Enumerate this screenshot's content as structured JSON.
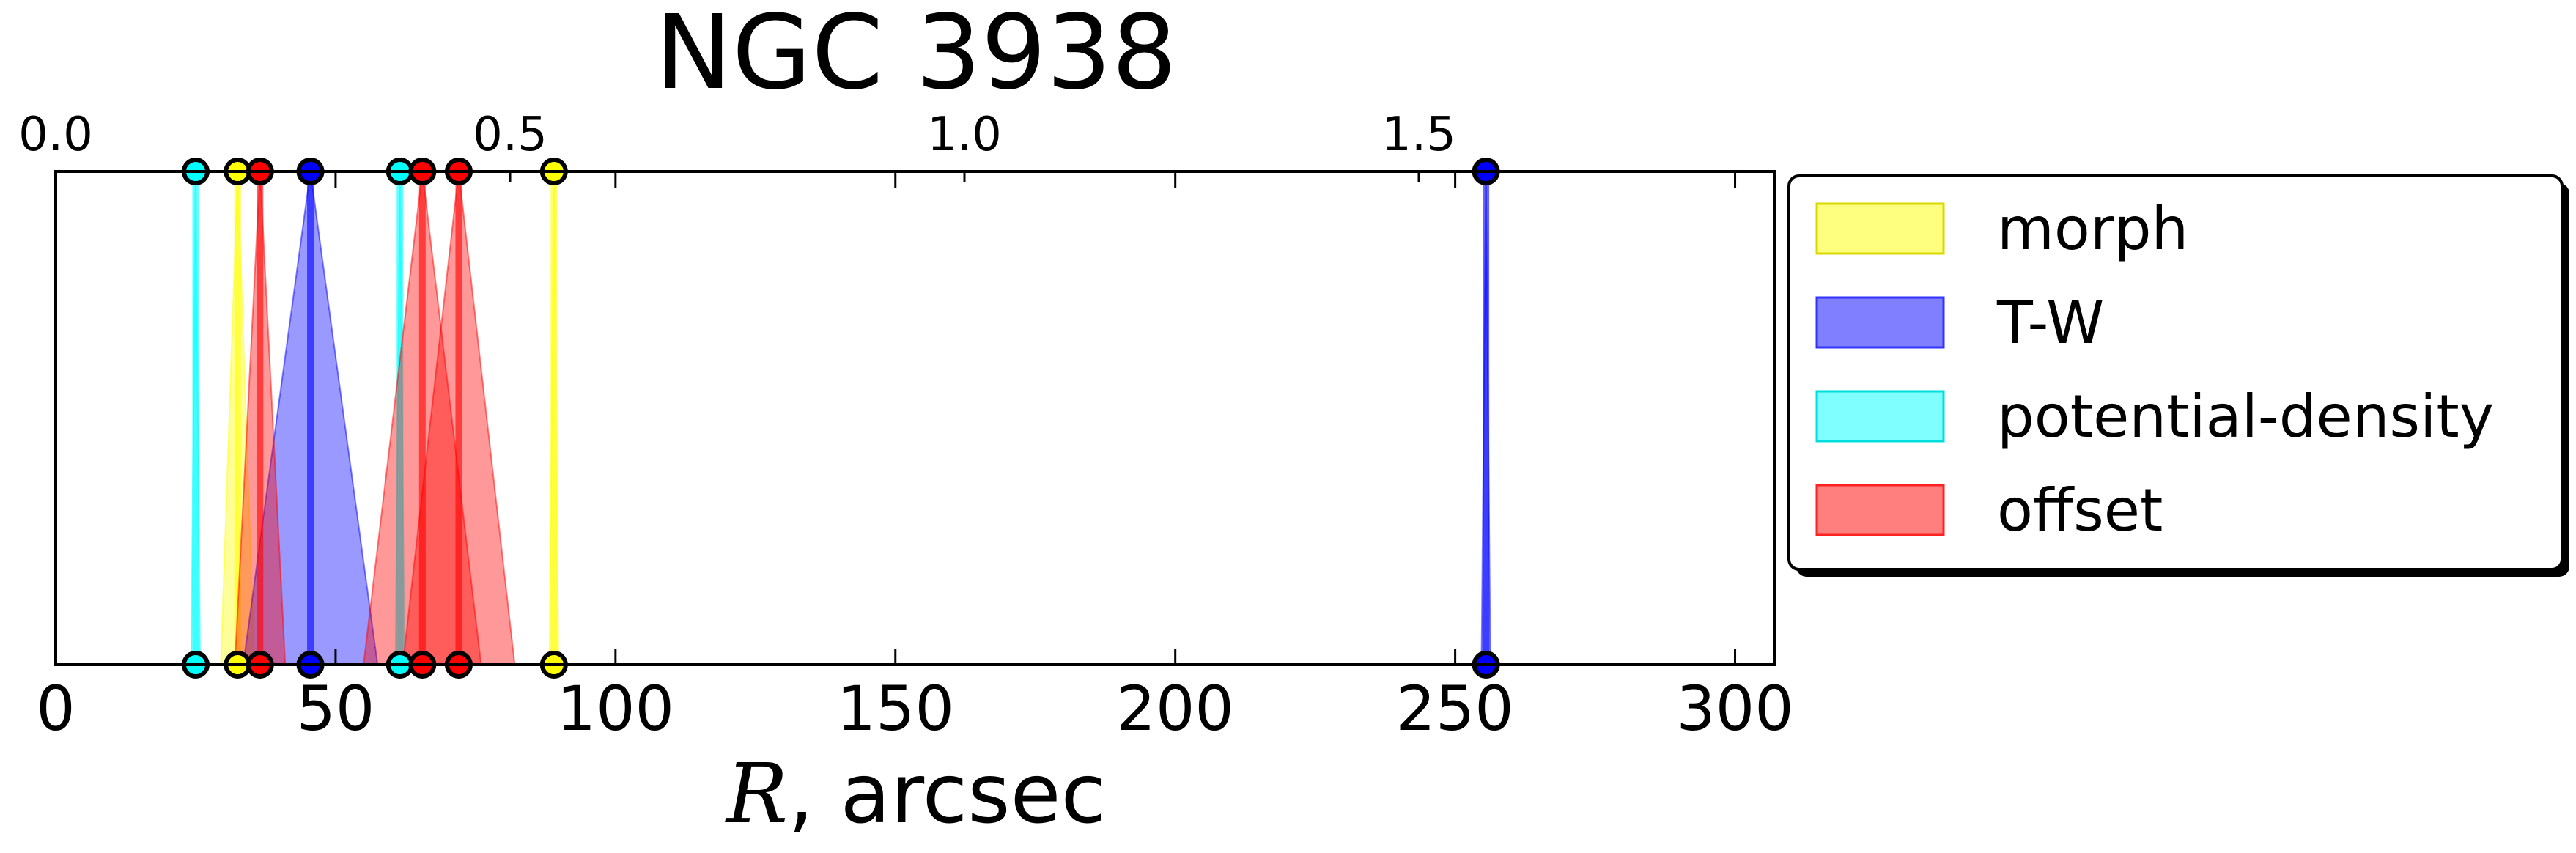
{
  "chart_data": {
    "type": "bar",
    "title": "NGC 3938",
    "xlabel_symbol": "R",
    "xlabel_unit": ", arcsec",
    "xlim": [
      0,
      307
    ],
    "xticks": [
      0,
      50,
      100,
      150,
      200,
      250,
      300
    ],
    "top_axis": {
      "ticks": [
        0.0,
        0.5,
        1.0,
        1.5
      ],
      "tick_labels": [
        "0.0",
        "0.5",
        "1.0",
        "1.5"
      ],
      "scale_factor": 0.00616
    },
    "grid": false,
    "legend_position": "right",
    "series": [
      {
        "name": "morph",
        "color": "#ffff00",
        "edge_color": "#d8d800",
        "lines": [
          {
            "r": 32.5,
            "err": 3.0
          },
          {
            "r": 89.0,
            "err": 0.8
          }
        ]
      },
      {
        "name": "T-W",
        "color": "#0000ff",
        "edge_color": "#3333ff",
        "lines": [
          {
            "r": 45.5,
            "err": 12.0
          },
          {
            "r": 255.5,
            "err": 0.8
          }
        ]
      },
      {
        "name": "potential-density",
        "color": "#00ffff",
        "edge_color": "#00dddd",
        "lines": [
          {
            "r": 25.0,
            "err": 0.8
          },
          {
            "r": 61.5,
            "err": 0.8
          }
        ]
      },
      {
        "name": "offset",
        "color": "#ff0000",
        "edge_color": "#ff2222",
        "lines": [
          {
            "r": 36.5,
            "err": 4.5
          },
          {
            "r": 65.5,
            "err": 10.5
          },
          {
            "r": 72.0,
            "err": 10.0
          }
        ]
      }
    ]
  }
}
